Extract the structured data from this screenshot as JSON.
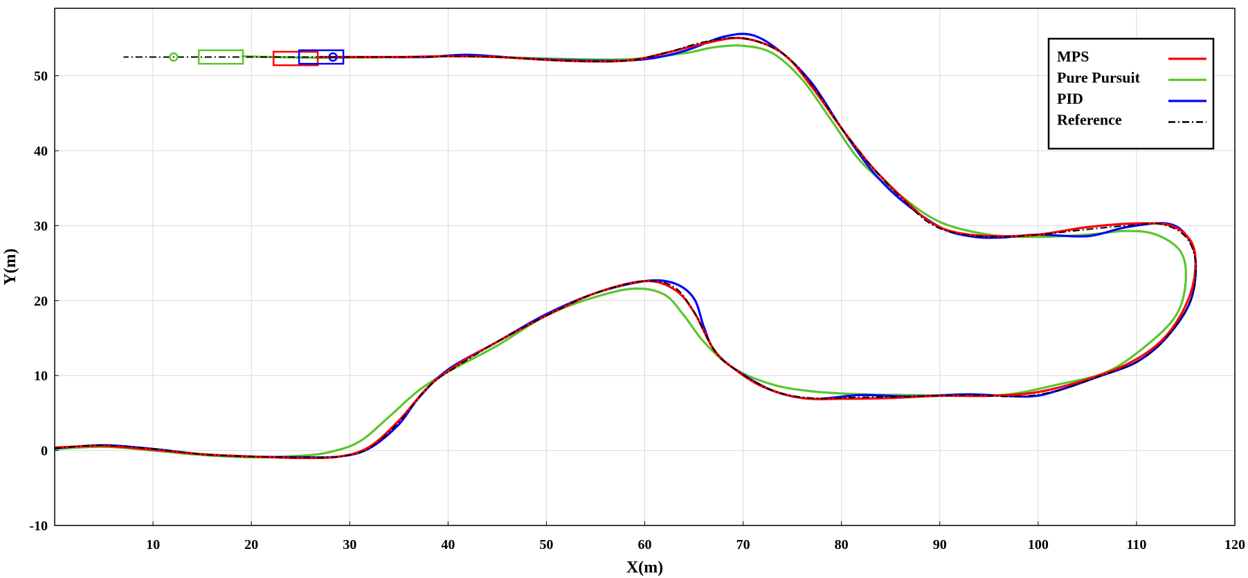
{
  "chart_data": {
    "type": "line",
    "xlabel": "X(m)",
    "ylabel": "Y(m)",
    "xlim": [
      0,
      120
    ],
    "ylim": [
      -10,
      59
    ],
    "xticks": [
      10,
      20,
      30,
      40,
      50,
      60,
      70,
      80,
      90,
      100,
      110,
      120
    ],
    "yticks": [
      -10,
      0,
      10,
      20,
      30,
      40,
      50
    ],
    "grid": true,
    "legend_position": "top-right",
    "series": [
      {
        "name": "MPS",
        "color": "#ff0000",
        "dash": "solid",
        "points": [
          [
            0,
            0.4
          ],
          [
            5,
            0.6
          ],
          [
            10,
            0.1
          ],
          [
            15,
            -0.5
          ],
          [
            20,
            -0.8
          ],
          [
            25,
            -1.0
          ],
          [
            29,
            -0.8
          ],
          [
            32,
            0.5
          ],
          [
            35,
            4.0
          ],
          [
            38,
            8.5
          ],
          [
            41,
            11.5
          ],
          [
            45,
            14.5
          ],
          [
            50,
            18.0
          ],
          [
            55,
            21.0
          ],
          [
            60,
            22.6
          ],
          [
            63,
            21.5
          ],
          [
            65,
            18.5
          ],
          [
            67,
            13.5
          ],
          [
            69,
            11.0
          ],
          [
            72,
            8.5
          ],
          [
            76,
            7.0
          ],
          [
            80,
            6.9
          ],
          [
            85,
            7.0
          ],
          [
            90,
            7.3
          ],
          [
            95,
            7.3
          ],
          [
            100,
            7.8
          ],
          [
            105,
            9.5
          ],
          [
            109,
            11.5
          ],
          [
            112,
            14.0
          ],
          [
            114,
            17.0
          ],
          [
            115.5,
            21.0
          ],
          [
            116,
            25.0
          ],
          [
            115.5,
            28.0
          ],
          [
            113.5,
            30.0
          ],
          [
            110,
            30.3
          ],
          [
            105,
            29.8
          ],
          [
            100,
            28.8
          ],
          [
            96,
            28.6
          ],
          [
            92,
            29.0
          ],
          [
            89,
            30.5
          ],
          [
            86,
            34.0
          ],
          [
            83,
            38.0
          ],
          [
            80,
            43.0
          ],
          [
            77,
            48.5
          ],
          [
            74,
            53.0
          ],
          [
            70,
            55.0
          ],
          [
            66,
            54.3
          ],
          [
            62,
            53.0
          ],
          [
            58,
            52.0
          ],
          [
            52,
            52.0
          ],
          [
            45,
            52.5
          ],
          [
            40,
            52.6
          ],
          [
            35,
            52.5
          ],
          [
            30,
            52.5
          ],
          [
            27,
            52.5
          ]
        ]
      },
      {
        "name": "Pure Pursuit",
        "color": "#5ac62d",
        "dash": "solid",
        "points": [
          [
            0,
            0.2
          ],
          [
            5,
            0.5
          ],
          [
            10,
            0.0
          ],
          [
            15,
            -0.6
          ],
          [
            20,
            -0.9
          ],
          [
            25,
            -0.7
          ],
          [
            28,
            -0.2
          ],
          [
            31,
            1.2
          ],
          [
            34,
            4.5
          ],
          [
            37,
            8.0
          ],
          [
            40,
            10.5
          ],
          [
            45,
            14.0
          ],
          [
            50,
            18.0
          ],
          [
            55,
            20.5
          ],
          [
            59,
            21.6
          ],
          [
            62,
            20.8
          ],
          [
            64,
            18.0
          ],
          [
            66,
            14.5
          ],
          [
            69,
            11.0
          ],
          [
            73,
            8.8
          ],
          [
            77,
            7.9
          ],
          [
            82,
            7.5
          ],
          [
            87,
            7.4
          ],
          [
            92,
            7.3
          ],
          [
            97,
            7.5
          ],
          [
            102,
            8.8
          ],
          [
            107,
            10.5
          ],
          [
            111,
            14.0
          ],
          [
            114,
            18.0
          ],
          [
            115,
            22.5
          ],
          [
            114.5,
            26.5
          ],
          [
            112,
            28.8
          ],
          [
            109,
            29.3
          ],
          [
            105,
            28.8
          ],
          [
            100,
            28.5
          ],
          [
            95,
            28.8
          ],
          [
            90,
            30.5
          ],
          [
            86,
            34.0
          ],
          [
            82,
            38.5
          ],
          [
            79,
            44.0
          ],
          [
            76,
            49.5
          ],
          [
            73,
            53.0
          ],
          [
            70,
            54.0
          ],
          [
            67,
            53.8
          ],
          [
            64,
            53.0
          ],
          [
            58,
            52.2
          ],
          [
            50,
            52.3
          ],
          [
            42,
            52.6
          ],
          [
            35,
            52.5
          ],
          [
            28,
            52.4
          ],
          [
            22,
            52.5
          ],
          [
            19,
            52.6
          ]
        ]
      },
      {
        "name": "PID",
        "color": "#0000ff",
        "dash": "solid",
        "points": [
          [
            0,
            0.3
          ],
          [
            5,
            0.7
          ],
          [
            10,
            0.2
          ],
          [
            15,
            -0.5
          ],
          [
            20,
            -0.8
          ],
          [
            25,
            -0.9
          ],
          [
            29,
            -0.8
          ],
          [
            32,
            0.3
          ],
          [
            35,
            3.5
          ],
          [
            37,
            7.0
          ],
          [
            40,
            10.8
          ],
          [
            45,
            14.5
          ],
          [
            50,
            18.2
          ],
          [
            55,
            21.0
          ],
          [
            60,
            22.6
          ],
          [
            63,
            22.3
          ],
          [
            65,
            20.3
          ],
          [
            66,
            16.5
          ],
          [
            67,
            13.5
          ],
          [
            69,
            11.0
          ],
          [
            73,
            8.0
          ],
          [
            77,
            6.9
          ],
          [
            82,
            7.4
          ],
          [
            87,
            7.2
          ],
          [
            93,
            7.5
          ],
          [
            99,
            7.2
          ],
          [
            102,
            8.0
          ],
          [
            106,
            9.8
          ],
          [
            110,
            11.8
          ],
          [
            113,
            15.0
          ],
          [
            115.5,
            20.0
          ],
          [
            116,
            25.5
          ],
          [
            115,
            28.8
          ],
          [
            113,
            30.3
          ],
          [
            109,
            29.8
          ],
          [
            105,
            28.6
          ],
          [
            100,
            28.8
          ],
          [
            96,
            28.4
          ],
          [
            93,
            28.6
          ],
          [
            90,
            29.8
          ],
          [
            86,
            33.5
          ],
          [
            83,
            37.5
          ],
          [
            80,
            43.0
          ],
          [
            77,
            49.0
          ],
          [
            74,
            53.0
          ],
          [
            71,
            55.4
          ],
          [
            68,
            55.2
          ],
          [
            64,
            53.3
          ],
          [
            60,
            52.2
          ],
          [
            55,
            52.0
          ],
          [
            48,
            52.3
          ],
          [
            42,
            52.8
          ],
          [
            38,
            52.5
          ],
          [
            34,
            52.5
          ],
          [
            30,
            52.5
          ],
          [
            28.5,
            52.5
          ]
        ]
      },
      {
        "name": "Reference",
        "color": "#000000",
        "dash": "dashdot",
        "points": [
          [
            0,
            0.3
          ],
          [
            5,
            0.7
          ],
          [
            10,
            0.2
          ],
          [
            15,
            -0.5
          ],
          [
            20,
            -0.8
          ],
          [
            25,
            -0.9
          ],
          [
            29,
            -0.8
          ],
          [
            32,
            0.3
          ],
          [
            35,
            3.8
          ],
          [
            38,
            8.5
          ],
          [
            41,
            11.3
          ],
          [
            45,
            14.5
          ],
          [
            50,
            18.0
          ],
          [
            55,
            21.0
          ],
          [
            60,
            22.6
          ],
          [
            63,
            21.8
          ],
          [
            65,
            18.5
          ],
          [
            67,
            13.5
          ],
          [
            69,
            11.0
          ],
          [
            73,
            8.0
          ],
          [
            77,
            7.0
          ],
          [
            82,
            7.1
          ],
          [
            87,
            7.2
          ],
          [
            93,
            7.4
          ],
          [
            98,
            7.2
          ],
          [
            102,
            8.0
          ],
          [
            106,
            9.8
          ],
          [
            110,
            11.8
          ],
          [
            113,
            15.0
          ],
          [
            115.5,
            20.0
          ],
          [
            116,
            25.0
          ],
          [
            115,
            28.5
          ],
          [
            112.5,
            30.2
          ],
          [
            109,
            30.0
          ],
          [
            105,
            29.5
          ],
          [
            100,
            28.8
          ],
          [
            96,
            28.5
          ],
          [
            92,
            28.9
          ],
          [
            89,
            30.3
          ],
          [
            86,
            33.8
          ],
          [
            83,
            38.0
          ],
          [
            80,
            43.0
          ],
          [
            77,
            48.8
          ],
          [
            74,
            53.0
          ],
          [
            70,
            55.0
          ],
          [
            66,
            54.5
          ],
          [
            62,
            53.0
          ],
          [
            58,
            52.0
          ],
          [
            52,
            52.0
          ],
          [
            45,
            52.5
          ],
          [
            40,
            52.6
          ],
          [
            35,
            52.5
          ],
          [
            30,
            52.5
          ],
          [
            20,
            52.5
          ],
          [
            12,
            52.5
          ],
          [
            7,
            52.5
          ]
        ]
      }
    ],
    "markers": [
      {
        "name": "Pure Pursuit vehicle",
        "color": "#5ac62d",
        "box_center": [
          16.9,
          52.5
        ],
        "box_size": [
          4.5,
          1.8
        ],
        "circle": [
          12.1,
          52.5
        ]
      },
      {
        "name": "MPS vehicle",
        "color": "#ff0000",
        "box_center": [
          24.5,
          52.3
        ],
        "box_size": [
          4.5,
          1.8
        ]
      },
      {
        "name": "PID vehicle",
        "color": "#0000ff",
        "box_center": [
          27.1,
          52.5
        ],
        "box_size": [
          4.5,
          1.8
        ],
        "circle": [
          28.3,
          52.5
        ]
      }
    ]
  }
}
